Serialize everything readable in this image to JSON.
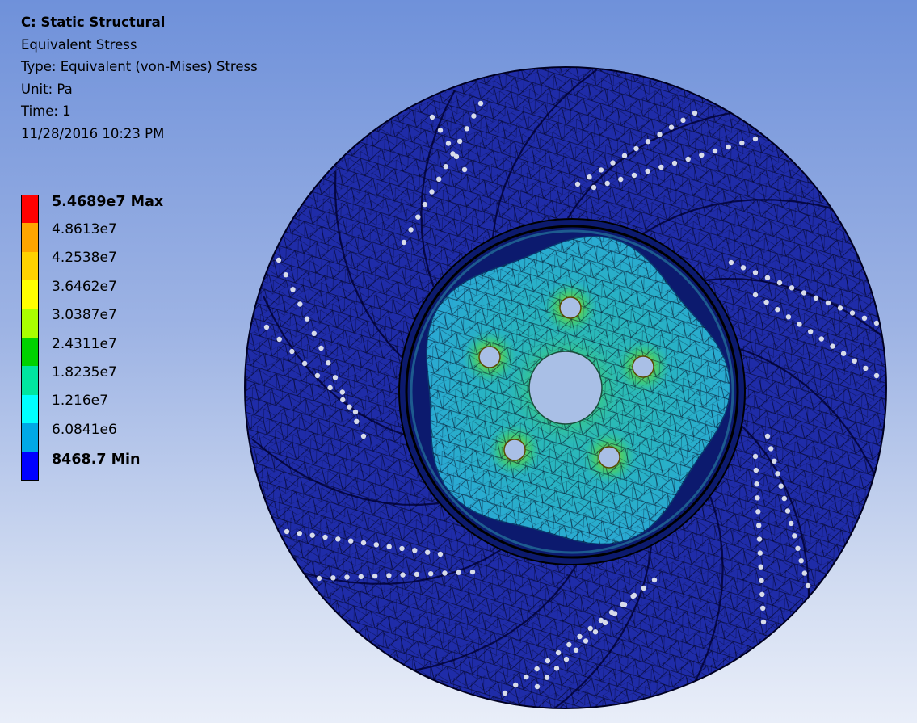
{
  "info": {
    "title": "C: Static Structural",
    "result": "Equivalent Stress",
    "type": "Type: Equivalent (von-Mises) Stress",
    "unit": "Unit: Pa",
    "time": "Time: 1",
    "date": "11/28/2016 10:23 PM"
  },
  "legend": {
    "colors": [
      "#ff0000",
      "#ffa500",
      "#ffd200",
      "#ffff00",
      "#aaff00",
      "#00d200",
      "#00e5a0",
      "#00ffff",
      "#00a9e6",
      "#0000ff"
    ],
    "labels": [
      "5.4689e7 Max",
      "4.8613e7",
      "4.2538e7",
      "3.6462e7",
      "3.0387e7",
      "2.4311e7",
      "1.8235e7",
      "1.216e7",
      "6.0841e6",
      "8468.7 Min"
    ]
  },
  "model": {
    "disc_color": "#1f2ca8",
    "hub_color": "#26a9c5",
    "hole_fill": "#a9bfe6"
  }
}
